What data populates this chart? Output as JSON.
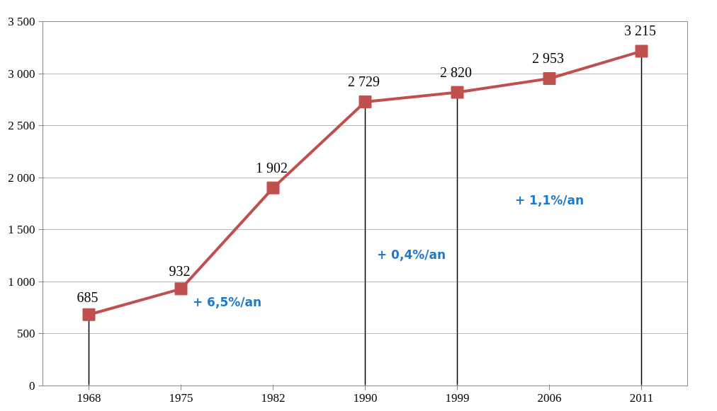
{
  "chart_data": {
    "type": "line",
    "categories": [
      "1968",
      "1975",
      "1982",
      "1990",
      "1999",
      "2006",
      "2011"
    ],
    "series": [
      {
        "color": "#c0504d",
        "values": [
          685,
          932,
          1902,
          2729,
          2820,
          2953,
          3215
        ]
      }
    ],
    "ylim": [
      0,
      3500
    ],
    "yticks": [
      {
        "value": 0,
        "label": "0"
      },
      {
        "value": 500,
        "label": "500"
      },
      {
        "value": 1000,
        "label": "1 000"
      },
      {
        "value": 1500,
        "label": "1 500"
      },
      {
        "value": 2000,
        "label": "2 000"
      },
      {
        "value": 2500,
        "label": "2 500"
      },
      {
        "value": 3000,
        "label": "3 000"
      },
      {
        "value": 3500,
        "label": "3 500"
      }
    ],
    "grid": "y",
    "marker": "square",
    "line_style": "solid",
    "data_labels": true,
    "value_labels": [
      "685",
      "932",
      "1 902",
      "2 729",
      "2 820",
      "2 953",
      "3 215"
    ],
    "ref_lines": [
      {
        "axis": "x",
        "value": "1968",
        "color": "#000000"
      },
      {
        "axis": "x",
        "value": "1990",
        "color": "#000000"
      },
      {
        "axis": "x",
        "value": "1999",
        "color": "#000000"
      },
      {
        "axis": "x",
        "value": "2011",
        "color": "#000000"
      }
    ],
    "annotations": [
      "+ 6,5%/an",
      "+ 0,4%/an",
      "+ 1,1%/an"
    ]
  }
}
